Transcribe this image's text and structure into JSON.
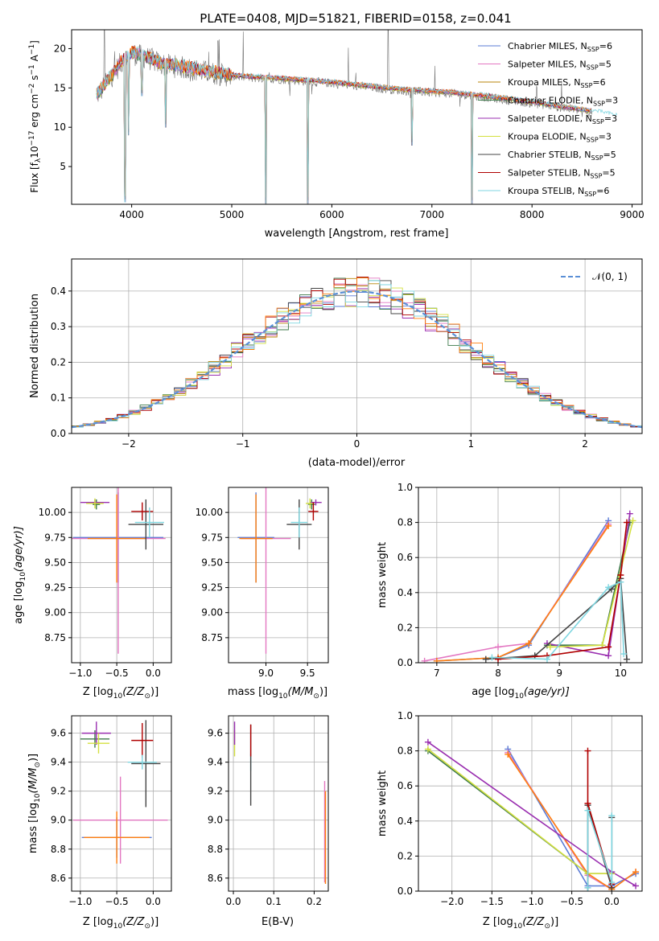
{
  "figure": {
    "title": "PLATE=0408, MJD=51821, FIBERID=0158, z=0.041"
  },
  "colors": {
    "c1": "#5b7bd6",
    "c2": "#e377c2",
    "c3": "#b8860b",
    "c4": "#3d7a4a",
    "c5": "#9a2fb0",
    "c6": "#d4e040",
    "c7": "#444444",
    "c8": "#b00000",
    "c9": "#7fd6e0",
    "orange": "#ff7f0e",
    "gauss": "#5a8fd6",
    "grey": "#888888"
  },
  "chart_data": [
    {
      "id": "spectrum",
      "type": "line",
      "xlabel": "wavelength [Angstrom, rest frame]",
      "ylabel": "Flux [f",
      "ylabel_sub": "λ",
      "ylabel_tail": "10",
      "ylabel_exp1": "−17",
      "ylabel_mid": " erg cm",
      "ylabel_exp2": "−2",
      "ylabel_s": " s",
      "ylabel_exp3": "−1",
      "ylabel_end": " A",
      "ylabel_exp4": "−1",
      "ylabel_close": "]",
      "xlim": [
        3400,
        9100
      ],
      "ylim": [
        0.2,
        22.4
      ],
      "xticks": [
        4000,
        5000,
        6000,
        7000,
        8000,
        9000
      ],
      "yticks": [
        5,
        10,
        15,
        20
      ],
      "legend_position": "top-right",
      "legend": [
        {
          "text": "Chabrier MILES, N",
          "n": "6",
          "color": "c1"
        },
        {
          "text": "Salpeter MILES, N",
          "n": "5",
          "color": "c2"
        },
        {
          "text": "Kroupa MILES, N",
          "n": "6",
          "color": "c3"
        },
        {
          "text": "Chabrier ELODIE, N",
          "n": "3",
          "color": "c4"
        },
        {
          "text": "Salpeter ELODIE, N",
          "n": "3",
          "color": "c5"
        },
        {
          "text": "Kroupa ELODIE, N",
          "n": "3",
          "color": "c6"
        },
        {
          "text": "Chabrier STELIB, N",
          "n": "5",
          "color": "c7"
        },
        {
          "text": "Salpeter STELIB, N",
          "n": "5",
          "color": "c8"
        },
        {
          "text": "Kroupa STELIB, N",
          "n": "6",
          "color": "c9"
        }
      ],
      "legend_sub": "SSP",
      "continuum": {
        "x": [
          3650,
          3700,
          3800,
          3900,
          4000,
          4100,
          4200,
          4300,
          4500,
          4800,
          5000,
          5200,
          5500,
          5800,
          6000,
          6300,
          6600,
          6900,
          7200,
          7500,
          7800,
          8100,
          8400,
          8700,
          8850
        ],
        "y": [
          14.0,
          14.8,
          16.5,
          18.3,
          19.4,
          19.0,
          18.6,
          18.0,
          17.6,
          16.9,
          16.5,
          16.3,
          16.1,
          15.8,
          15.6,
          15.2,
          14.8,
          14.5,
          14.3,
          13.9,
          13.4,
          12.9,
          12.3,
          11.7,
          11.3
        ]
      },
      "absorption": [
        {
          "x": 3934,
          "y": 0.5
        },
        {
          "x": 3969,
          "y": 9.0
        },
        {
          "x": 4102,
          "y": 14.0
        },
        {
          "x": 4340,
          "y": 10.0
        },
        {
          "x": 5340,
          "y": 0.3
        },
        {
          "x": 5760,
          "y": 0.3
        },
        {
          "x": 6800,
          "y": 7.7
        },
        {
          "x": 7400,
          "y": 0.3
        }
      ],
      "emission": [
        {
          "x": 3727,
          "y": 22.4
        },
        {
          "x": 4861,
          "y": 21.0
        },
        {
          "x": 6563,
          "y": 22.4
        },
        {
          "x": 8050,
          "y": 15.0
        }
      ]
    },
    {
      "id": "residuals",
      "type": "histogram",
      "xlabel": "(data-model)/error",
      "ylabel": "Normed distribution",
      "xlim": [
        -2.5,
        2.5
      ],
      "ylim": [
        0,
        0.49
      ],
      "xticks": [
        -2,
        -1,
        0,
        1,
        2
      ],
      "yticks": [
        0.0,
        0.1,
        0.2,
        0.3,
        0.4
      ],
      "grid": true,
      "legend_position": "top-right",
      "legend_label": "𝒩(0, 1)",
      "gaussian": {
        "mean": 0,
        "sigma": 1
      }
    },
    {
      "id": "z-age",
      "type": "scatter",
      "xlabel": "Z [log",
      "xlabel_sub": "10",
      "xlabel_tail": "(Z/Z",
      "xlabel_sub2": "⊙",
      "xlabel_end": ")]",
      "ylabel": "age  [log",
      "ylabel_sub": "10",
      "ylabel_end": "(age/yr)]",
      "xlim": [
        -1.12,
        0.25
      ],
      "ylim": [
        8.5,
        10.25
      ],
      "xticks": [
        -1.0,
        -0.5,
        0.0
      ],
      "yticks": [
        8.75,
        9.0,
        9.25,
        9.5,
        9.75,
        10.0
      ],
      "grid": true,
      "points": [
        {
          "x": -0.48,
          "y": 9.75,
          "xerr": 0.62,
          "yerr": 0.45,
          "color": "c1"
        },
        {
          "x": -0.48,
          "y": 9.74,
          "xerr": 0.65,
          "yerr": 1.15,
          "color": "c2"
        },
        {
          "x": -0.5,
          "y": 9.74,
          "xerr": 0.4,
          "yerr": 0.44,
          "color": "orange"
        },
        {
          "x": -0.78,
          "y": 10.08,
          "xerr": 0.05,
          "yerr": 0.05,
          "color": "c4"
        },
        {
          "x": -0.8,
          "y": 10.1,
          "xerr": 0.2,
          "yerr": 0.03,
          "color": "c5"
        },
        {
          "x": -0.8,
          "y": 10.09,
          "xerr": 0.12,
          "yerr": 0.05,
          "color": "c6"
        },
        {
          "x": -0.1,
          "y": 9.88,
          "xerr": 0.24,
          "yerr": 0.25,
          "color": "c7"
        },
        {
          "x": -0.15,
          "y": 10.01,
          "xerr": 0.15,
          "yerr": 0.09,
          "color": "c8"
        },
        {
          "x": -0.05,
          "y": 9.9,
          "xerr": 0.2,
          "yerr": 0.15,
          "color": "c9"
        }
      ]
    },
    {
      "id": "mass-age",
      "type": "scatter",
      "xlabel": "mass [log",
      "xlabel_sub": "10",
      "xlabel_tail": "(M/M",
      "xlabel_sub2": "⊙",
      "xlabel_end": ")]",
      "xlim": [
        8.55,
        9.75
      ],
      "ylim": [
        8.5,
        10.25
      ],
      "xticks": [
        9.0,
        9.5
      ],
      "yticks": [
        8.75,
        9.0,
        9.25,
        9.5,
        9.75,
        10.0
      ],
      "grid": true,
      "points": [
        {
          "x": 8.88,
          "y": 9.75,
          "xerr": 0.22,
          "yerr": 0.45,
          "color": "c1"
        },
        {
          "x": 9.0,
          "y": 9.74,
          "xerr": 0.3,
          "yerr": 1.15,
          "color": "c2"
        },
        {
          "x": 8.88,
          "y": 9.74,
          "xerr": 0.2,
          "yerr": 0.44,
          "color": "orange"
        },
        {
          "x": 9.55,
          "y": 10.08,
          "xerr": 0.04,
          "yerr": 0.05,
          "color": "c4"
        },
        {
          "x": 9.6,
          "y": 10.1,
          "xerr": 0.07,
          "yerr": 0.03,
          "color": "c5"
        },
        {
          "x": 9.53,
          "y": 10.09,
          "xerr": 0.05,
          "yerr": 0.05,
          "color": "c6"
        },
        {
          "x": 9.4,
          "y": 9.88,
          "xerr": 0.15,
          "yerr": 0.25,
          "color": "c7"
        },
        {
          "x": 9.57,
          "y": 10.01,
          "xerr": 0.06,
          "yerr": 0.09,
          "color": "c8"
        },
        {
          "x": 9.4,
          "y": 9.9,
          "xerr": 0.1,
          "yerr": 0.15,
          "color": "c9"
        }
      ]
    },
    {
      "id": "age-weight",
      "type": "line",
      "xlabel": "age  [log",
      "xlabel_sub": "10",
      "xlabel_end": "(age/yr)]",
      "ylabel": "mass weight",
      "xlim": [
        6.7,
        10.35
      ],
      "ylim": [
        0,
        1
      ],
      "xticks": [
        7,
        8,
        9,
        10
      ],
      "yticks": [
        0.0,
        0.2,
        0.4,
        0.6,
        0.8,
        1.0
      ],
      "grid": true,
      "series": [
        {
          "color": "c1",
          "x": [
            7.0,
            8.0,
            8.5,
            9.8
          ],
          "y": [
            0.01,
            0.03,
            0.1,
            0.81
          ]
        },
        {
          "color": "c2",
          "x": [
            6.8,
            8.0,
            8.5,
            9.8
          ],
          "y": [
            0.01,
            0.09,
            0.11,
            0.79
          ]
        },
        {
          "color": "orange",
          "x": [
            7.0,
            8.0,
            8.5,
            9.8
          ],
          "y": [
            0.01,
            0.03,
            0.11,
            0.78
          ]
        },
        {
          "color": "c4",
          "x": [
            8.8,
            9.7,
            10.15
          ],
          "y": [
            0.1,
            0.1,
            0.8
          ]
        },
        {
          "color": "c5",
          "x": [
            8.8,
            9.8,
            10.15
          ],
          "y": [
            0.11,
            0.04,
            0.85
          ]
        },
        {
          "color": "c6",
          "x": [
            8.85,
            9.7,
            10.2
          ],
          "y": [
            0.09,
            0.1,
            0.81
          ]
        },
        {
          "color": "c7",
          "x": [
            7.8,
            8.6,
            9.85,
            10.0,
            10.1
          ],
          "y": [
            0.02,
            0.04,
            0.42,
            0.48,
            0.02
          ]
        },
        {
          "color": "c8",
          "x": [
            8.0,
            8.8,
            9.8,
            10.0,
            10.1
          ],
          "y": [
            0.02,
            0.04,
            0.09,
            0.5,
            0.8
          ]
        },
        {
          "color": "c9",
          "x": [
            7.9,
            8.8,
            9.8,
            10.0,
            10.05
          ],
          "y": [
            0.03,
            0.02,
            0.43,
            0.46,
            0.05
          ]
        }
      ]
    },
    {
      "id": "z-mass",
      "type": "scatter",
      "xlabel": "Z [log",
      "xlabel_sub": "10",
      "xlabel_tail": "(Z/Z",
      "xlabel_sub2": "⊙",
      "xlabel_end": ")]",
      "ylabel": "mass [log",
      "ylabel_sub": "10",
      "ylabel_end": "(M/M",
      "ylabel_sub2": "⊙",
      "ylabel_close": ")]",
      "xlim": [
        -1.12,
        0.25
      ],
      "ylim": [
        8.51,
        9.72
      ],
      "xticks": [
        -1.0,
        -0.5,
        0.0
      ],
      "yticks": [
        8.6,
        8.8,
        9.0,
        9.2,
        9.4,
        9.6
      ],
      "grid": true,
      "points": [
        {
          "x": -0.5,
          "y": 8.88,
          "xerr": 0.48,
          "yerr": 0.14,
          "color": "c1"
        },
        {
          "x": -0.45,
          "y": 9.0,
          "xerr": 0.65,
          "yerr": 0.3,
          "color": "c2"
        },
        {
          "x": -0.5,
          "y": 8.88,
          "xerr": 0.45,
          "yerr": 0.18,
          "color": "orange"
        },
        {
          "x": -0.8,
          "y": 9.56,
          "xerr": 0.2,
          "yerr": 0.06,
          "color": "c4"
        },
        {
          "x": -0.78,
          "y": 9.6,
          "xerr": 0.2,
          "yerr": 0.08,
          "color": "c5"
        },
        {
          "x": -0.75,
          "y": 9.53,
          "xerr": 0.15,
          "yerr": 0.07,
          "color": "c6"
        },
        {
          "x": -0.1,
          "y": 9.39,
          "xerr": 0.2,
          "yerr": 0.3,
          "color": "c7"
        },
        {
          "x": -0.15,
          "y": 9.55,
          "xerr": 0.15,
          "yerr": 0.12,
          "color": "c8"
        },
        {
          "x": -0.15,
          "y": 9.4,
          "xerr": 0.2,
          "yerr": 0.05,
          "color": "c9"
        }
      ]
    },
    {
      "id": "ebv-mass",
      "type": "scatter",
      "xlabel": "E(B-V)",
      "xlim": [
        -0.012,
        0.235
      ],
      "ylim": [
        8.51,
        9.72
      ],
      "xticks": [
        0.0,
        0.1,
        0.2
      ],
      "yticks": [
        8.6,
        8.8,
        9.0,
        9.2,
        9.4,
        9.6
      ],
      "grid": true,
      "points": [
        {
          "x": 0.003,
          "y": 9.53,
          "xerr": 0,
          "yerr": 0.09,
          "color": "c6"
        },
        {
          "x": 0.003,
          "y": 9.6,
          "xerr": 0,
          "yerr": 0.08,
          "color": "c5"
        },
        {
          "x": 0.043,
          "y": 9.4,
          "xerr": 0,
          "yerr": 0.06,
          "color": "c9"
        },
        {
          "x": 0.043,
          "y": 9.38,
          "xerr": 0,
          "yerr": 0.28,
          "color": "c7"
        },
        {
          "x": 0.043,
          "y": 9.55,
          "xerr": 0,
          "yerr": 0.11,
          "color": "c8"
        },
        {
          "x": 0.226,
          "y": 8.92,
          "xerr": 0,
          "yerr": 0.35,
          "color": "c2"
        },
        {
          "x": 0.228,
          "y": 8.88,
          "xerr": 0,
          "yerr": 0.32,
          "color": "orange"
        }
      ]
    },
    {
      "id": "z-weight",
      "type": "line",
      "xlabel": "Z [log",
      "xlabel_sub": "10",
      "xlabel_tail": "(Z/Z",
      "xlabel_sub2": "⊙",
      "xlabel_end": ")]",
      "ylabel": "mass weight",
      "xlim": [
        -2.42,
        0.38
      ],
      "ylim": [
        0,
        1
      ],
      "xticks": [
        -2.0,
        -1.5,
        -1.0,
        -0.5,
        0.0
      ],
      "yticks": [
        0.0,
        0.2,
        0.4,
        0.6,
        0.8,
        1.0
      ],
      "grid": true,
      "series": [
        {
          "color": "c1",
          "x": [
            -1.3,
            -0.3,
            0.0,
            0.3
          ],
          "y": [
            0.81,
            0.03,
            0.03,
            0.1
          ]
        },
        {
          "color": "c2",
          "x": [
            -1.3,
            -0.3,
            0.0,
            0.3
          ],
          "y": [
            0.79,
            0.09,
            0.01,
            0.11
          ]
        },
        {
          "color": "orange",
          "x": [
            -1.3,
            -0.3,
            0.0,
            0.3
          ],
          "y": [
            0.78,
            0.1,
            0.01,
            0.11
          ]
        },
        {
          "color": "c4",
          "x": [
            -2.3,
            -0.3,
            0.0
          ],
          "y": [
            0.8,
            0.1,
            0.1
          ]
        },
        {
          "color": "c5",
          "x": [
            -2.3,
            0.0,
            0.3
          ],
          "y": [
            0.85,
            0.11,
            0.03
          ]
        },
        {
          "color": "c6",
          "x": [
            -2.3,
            -0.3,
            0.0
          ],
          "y": [
            0.81,
            0.1,
            0.1
          ]
        },
        {
          "color": "c7",
          "x": [
            -0.3,
            -0.3,
            0.0,
            0.0
          ],
          "y": [
            0.02,
            0.49,
            0.02,
            0.42
          ]
        },
        {
          "color": "c8",
          "x": [
            -0.3,
            -0.3,
            0.0
          ],
          "y": [
            0.8,
            0.5,
            0.04
          ]
        },
        {
          "color": "c9",
          "x": [
            -0.3,
            -0.3,
            0.0,
            0.0
          ],
          "y": [
            0.02,
            0.46,
            0.05,
            0.43
          ]
        }
      ]
    }
  ]
}
